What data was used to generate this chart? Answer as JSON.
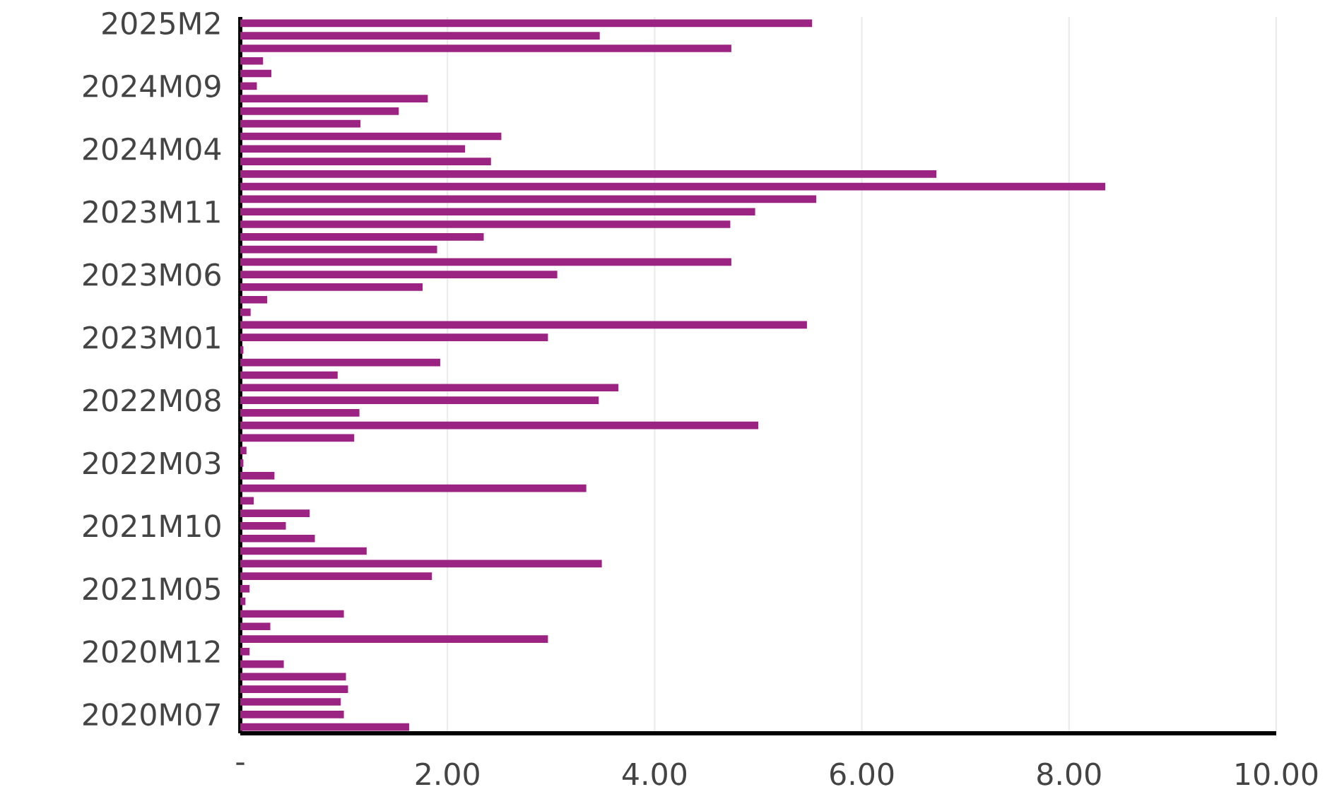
{
  "chart_data": {
    "type": "bar",
    "orientation": "horizontal",
    "categories": [
      "2025M2",
      null,
      null,
      null,
      null,
      "2024M09",
      null,
      null,
      null,
      null,
      "2024M04",
      null,
      null,
      null,
      null,
      "2023M11",
      null,
      null,
      null,
      null,
      "2023M06",
      null,
      null,
      null,
      null,
      "2023M01",
      null,
      null,
      null,
      null,
      "2022M08",
      null,
      null,
      null,
      null,
      "2022M03",
      null,
      null,
      null,
      null,
      "2021M10",
      null,
      null,
      null,
      null,
      "2021M05",
      null,
      null,
      null,
      null,
      "2020M12",
      null,
      null,
      null,
      null,
      "2020M07",
      null
    ],
    "values": [
      5.52,
      3.47,
      4.74,
      0.22,
      0.3,
      0.16,
      1.81,
      1.53,
      1.16,
      2.52,
      2.17,
      2.42,
      6.72,
      8.35,
      5.56,
      4.97,
      4.73,
      2.35,
      1.9,
      4.74,
      3.06,
      1.76,
      0.26,
      0.1,
      5.47,
      2.97,
      0.03,
      1.93,
      0.94,
      3.65,
      3.46,
      1.15,
      5.0,
      1.1,
      0.06,
      0.03,
      0.33,
      3.34,
      0.13,
      0.67,
      0.44,
      0.72,
      1.22,
      3.49,
      1.85,
      0.09,
      0.05,
      1.0,
      0.29,
      2.97,
      0.09,
      0.42,
      1.02,
      1.04,
      0.97,
      1.0,
      1.63
    ],
    "color": "#9b2482",
    "xlim": [
      0,
      10
    ],
    "xticks": [
      {
        "value": 0,
        "label": "-"
      },
      {
        "value": 2,
        "label": "2.00"
      },
      {
        "value": 4,
        "label": "4.00"
      },
      {
        "value": 6,
        "label": "6.00"
      },
      {
        "value": 8,
        "label": "8.00"
      },
      {
        "value": 10,
        "label": "10.00"
      }
    ],
    "grid": "x"
  }
}
